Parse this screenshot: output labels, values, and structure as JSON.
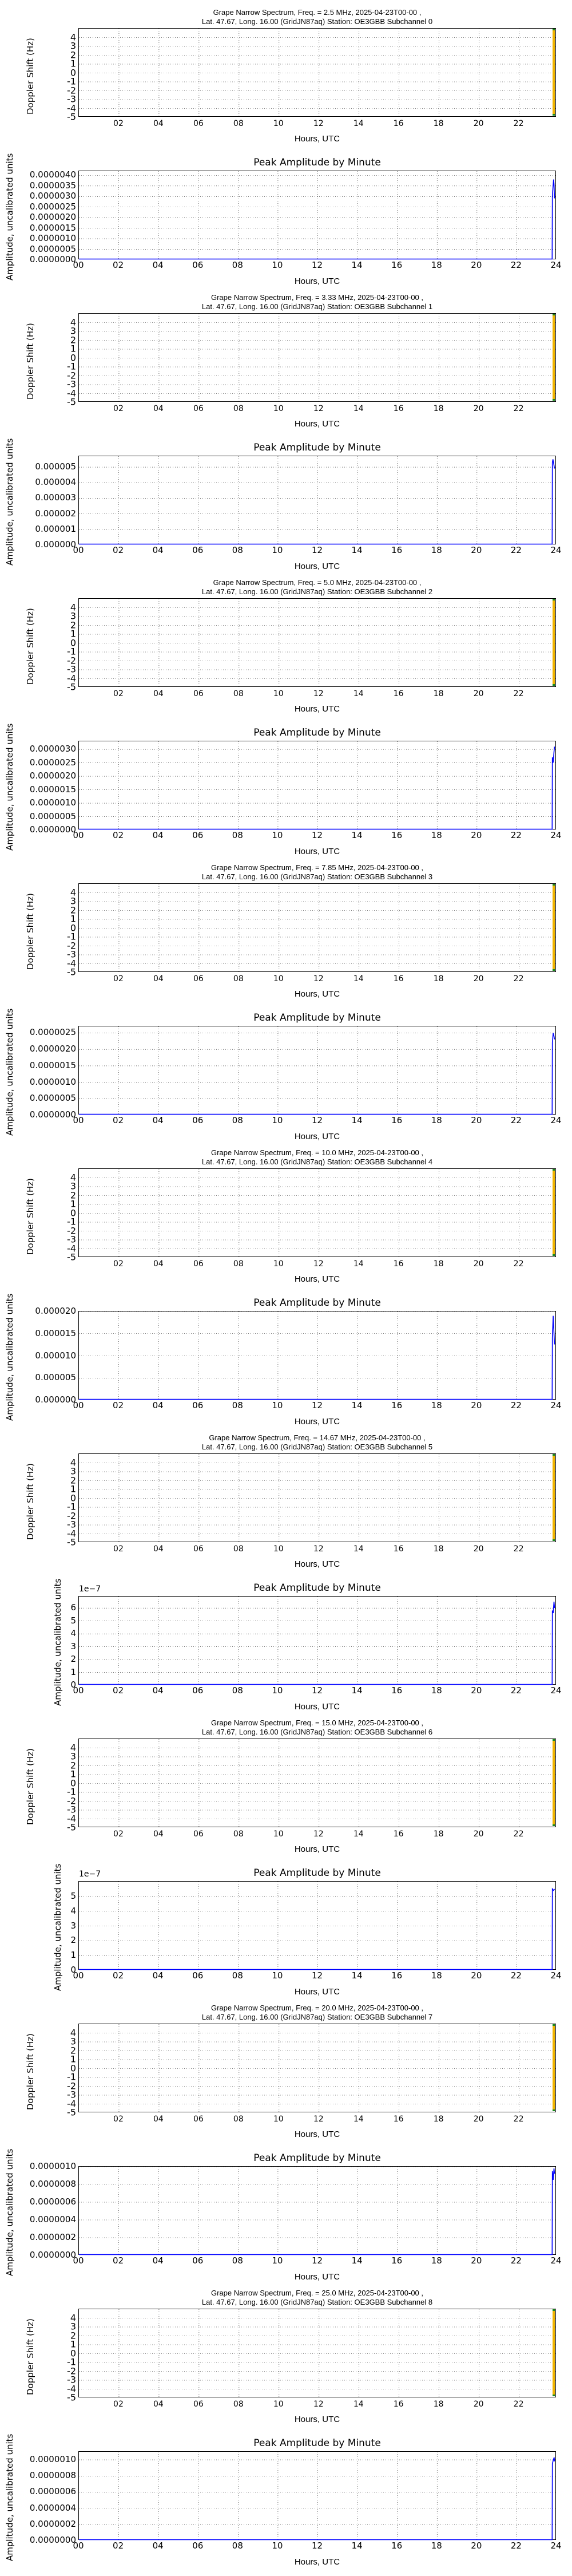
{
  "common": {
    "spectrum_ylabel": "Doppler Shift (Hz)",
    "amplitude_ylabel": "Amplitude, uncalibrated units",
    "amplitude_title": "Peak Amplitude by Minute",
    "xlabel": "Hours, UTC",
    "spectrum_xticks": [
      "02",
      "04",
      "06",
      "08",
      "10",
      "12",
      "14",
      "16",
      "18",
      "20",
      "22"
    ],
    "amplitude_xticks": [
      "00",
      "02",
      "04",
      "06",
      "08",
      "10",
      "12",
      "14",
      "16",
      "18",
      "20",
      "22",
      "24"
    ],
    "spectrum_yticks": [
      "4",
      "3",
      "2",
      "1",
      "0",
      "-1",
      "-2",
      "-3",
      "-4",
      "-5"
    ],
    "location_line": "Lat.  47.67, Long.  16.00 (GridJN87aq) Station: OE3GBB",
    "date": "2025-04-23T00-00",
    "colors": {
      "amplitude_line": "#0000ff",
      "spectrum_strip": "#f0b400",
      "spectrum_strip_edge": "#1a8a1a",
      "grid": "#000000"
    }
  },
  "sections": [
    {
      "spec_title_1": "Grape Narrow Spectrum, Freq. = 2.5 MHz, 2025-04-23T00-00 ,",
      "spec_title_2": "Lat.  47.67, Long.  16.00 (GridJN87aq) Station: OE3GBB Subchannel 0",
      "amp_offset": "",
      "amp_yticks": [
        "0.0000040",
        "0.0000035",
        "0.0000030",
        "0.0000025",
        "0.0000020",
        "0.0000015",
        "0.0000010",
        "0.0000005",
        "0.0000000"
      ]
    },
    {
      "spec_title_1": "Grape Narrow Spectrum, Freq. = 3.33 MHz, 2025-04-23T00-00 ,",
      "spec_title_2": "Lat.  47.67, Long.  16.00 (GridJN87aq) Station: OE3GBB Subchannel 1",
      "amp_offset": "",
      "amp_yticks": [
        "0.000005",
        "0.000004",
        "0.000003",
        "0.000002",
        "0.000001",
        "0.000000"
      ]
    },
    {
      "spec_title_1": "Grape Narrow Spectrum, Freq. = 5.0 MHz, 2025-04-23T00-00 ,",
      "spec_title_2": "Lat.  47.67, Long.  16.00 (GridJN87aq) Station: OE3GBB Subchannel 2",
      "amp_offset": "",
      "amp_yticks": [
        "0.0000030",
        "0.0000025",
        "0.0000020",
        "0.0000015",
        "0.0000010",
        "0.0000005",
        "0.0000000"
      ]
    },
    {
      "spec_title_1": "Grape Narrow Spectrum, Freq. = 7.85 MHz, 2025-04-23T00-00 ,",
      "spec_title_2": "Lat.  47.67, Long.  16.00 (GridJN87aq) Station: OE3GBB Subchannel 3",
      "amp_offset": "",
      "amp_yticks": [
        "0.0000025",
        "0.0000020",
        "0.0000015",
        "0.0000010",
        "0.0000005",
        "0.0000000"
      ]
    },
    {
      "spec_title_1": "Grape Narrow Spectrum, Freq. = 10.0 MHz, 2025-04-23T00-00 ,",
      "spec_title_2": "Lat.  47.67, Long.  16.00 (GridJN87aq) Station: OE3GBB Subchannel 4",
      "amp_offset": "",
      "amp_yticks": [
        "0.000020",
        "0.000015",
        "0.000010",
        "0.000005",
        "0.000000"
      ]
    },
    {
      "spec_title_1": "Grape Narrow Spectrum, Freq. = 14.67 MHz, 2025-04-23T00-00 ,",
      "spec_title_2": "Lat.  47.67, Long.  16.00 (GridJN87aq) Station: OE3GBB Subchannel 5",
      "amp_offset": "1e−7",
      "amp_yticks": [
        "6",
        "5",
        "4",
        "3",
        "2",
        "1",
        "0"
      ]
    },
    {
      "spec_title_1": "Grape Narrow Spectrum, Freq. = 15.0 MHz, 2025-04-23T00-00 ,",
      "spec_title_2": "Lat.  47.67, Long.  16.00 (GridJN87aq) Station: OE3GBB Subchannel 6",
      "amp_offset": "1e−7",
      "amp_yticks": [
        "5",
        "4",
        "3",
        "2",
        "1",
        "0"
      ]
    },
    {
      "spec_title_1": "Grape Narrow Spectrum, Freq. = 20.0 MHz, 2025-04-23T00-00 ,",
      "spec_title_2": "Lat.  47.67, Long.  16.00 (GridJN87aq) Station: OE3GBB Subchannel 7",
      "amp_offset": "",
      "amp_yticks": [
        "0.0000010",
        "0.0000008",
        "0.0000006",
        "0.0000004",
        "0.0000002",
        "0.0000000"
      ]
    },
    {
      "spec_title_1": "Grape Narrow Spectrum, Freq. = 25.0 MHz, 2025-04-23T00-00 ,",
      "spec_title_2": "Lat.  47.67, Long.  16.00 (GridJN87aq) Station: OE3GBB Subchannel 8",
      "amp_offset": "",
      "amp_yticks": [
        "0.0000010",
        "0.0000008",
        "0.0000006",
        "0.0000004",
        "0.0000002",
        "0.0000000"
      ]
    }
  ],
  "chart_data": [
    {
      "type": "heatmap",
      "title": "Grape Narrow Spectrum, Freq. = 2.5 MHz, 2025-04-23T00-00 , Lat. 47.67, Long. 16.00 (GridJN87aq) Station: OE3GBB Subchannel 0",
      "xlabel": "Hours, UTC",
      "ylabel": "Doppler Shift (Hz)",
      "xlim": [
        0,
        23.87
      ],
      "ylim": [
        -5,
        5
      ],
      "x_ticks": [
        "02",
        "04",
        "06",
        "08",
        "10",
        "12",
        "14",
        "16",
        "18",
        "20",
        "22"
      ],
      "y_ticks": [
        4,
        3,
        2,
        1,
        0,
        -1,
        -2,
        -3,
        -4,
        -5
      ],
      "grid": true,
      "data_region": {
        "x": [
          23.73,
          23.87
        ],
        "y": [
          -5,
          5
        ],
        "color": "orange/yellow"
      }
    },
    {
      "type": "line",
      "title": "Peak Amplitude by Minute",
      "subchannel": 0,
      "xlabel": "Hours, UTC",
      "ylabel": "Amplitude, uncalibrated units",
      "xlim": [
        0,
        24
      ],
      "ylim": [
        0,
        4.2e-06
      ],
      "grid": true,
      "x": [
        0,
        23.78,
        23.79,
        23.82,
        23.85,
        23.87,
        23.9
      ],
      "values": [
        0,
        0,
        3e-06,
        3.4e-06,
        3.8e-06,
        3.6e-06,
        2.9e-06
      ]
    },
    {
      "type": "heatmap",
      "title": "Grape Narrow Spectrum, Freq. = 3.33 MHz, 2025-04-23T00-00 , Lat. 47.67, Long. 16.00 (GridJN87aq) Station: OE3GBB Subchannel 1",
      "xlabel": "Hours, UTC",
      "ylabel": "Doppler Shift (Hz)",
      "xlim": [
        0,
        23.87
      ],
      "ylim": [
        -5,
        5
      ],
      "grid": true
    },
    {
      "type": "line",
      "title": "Peak Amplitude by Minute",
      "subchannel": 1,
      "xlabel": "Hours, UTC",
      "ylabel": "Amplitude, uncalibrated units",
      "xlim": [
        0,
        24
      ],
      "ylim": [
        0,
        5.7e-06
      ],
      "grid": true,
      "x": [
        0,
        23.78,
        23.79,
        23.82,
        23.86,
        23.9
      ],
      "values": [
        0,
        0,
        5.3e-06,
        5.5e-06,
        5.2e-06,
        4.9e-06
      ]
    },
    {
      "type": "heatmap",
      "title": "Grape Narrow Spectrum, Freq. = 5.0 MHz, 2025-04-23T00-00 , Lat. 47.67, Long. 16.00 (GridJN87aq) Station: OE3GBB Subchannel 2",
      "xlabel": "Hours, UTC",
      "ylabel": "Doppler Shift (Hz)",
      "xlim": [
        0,
        23.87
      ],
      "ylim": [
        -5,
        5
      ],
      "grid": true
    },
    {
      "type": "line",
      "title": "Peak Amplitude by Minute",
      "subchannel": 2,
      "xlabel": "Hours, UTC",
      "ylabel": "Amplitude, uncalibrated units",
      "xlim": [
        0,
        24
      ],
      "ylim": [
        0,
        3.3e-06
      ],
      "grid": true,
      "x": [
        0,
        23.78,
        23.79,
        23.83,
        23.87,
        23.9
      ],
      "values": [
        0,
        0,
        2.7e-06,
        2.5e-06,
        2.9e-06,
        3.1e-06
      ]
    },
    {
      "type": "heatmap",
      "title": "Grape Narrow Spectrum, Freq. = 7.85 MHz, 2025-04-23T00-00 , Lat. 47.67, Long. 16.00 (GridJN87aq) Station: OE3GBB Subchannel 3",
      "xlabel": "Hours, UTC",
      "ylabel": "Doppler Shift (Hz)",
      "xlim": [
        0,
        23.87
      ],
      "ylim": [
        -5,
        5
      ],
      "grid": true
    },
    {
      "type": "line",
      "title": "Peak Amplitude by Minute",
      "subchannel": 3,
      "xlabel": "Hours, UTC",
      "ylabel": "Amplitude, uncalibrated units",
      "xlim": [
        0,
        24
      ],
      "ylim": [
        0,
        2.7e-06
      ],
      "grid": true,
      "x": [
        0,
        23.78,
        23.79,
        23.83,
        23.87,
        23.9
      ],
      "values": [
        0,
        0,
        2.2e-06,
        2.5e-06,
        2.4e-06,
        2.3e-06
      ]
    },
    {
      "type": "heatmap",
      "title": "Grape Narrow Spectrum, Freq. = 10.0 MHz, 2025-04-23T00-00 , Lat. 47.67, Long. 16.00 (GridJN87aq) Station: OE3GBB Subchannel 4",
      "xlabel": "Hours, UTC",
      "ylabel": "Doppler Shift (Hz)",
      "xlim": [
        0,
        23.87
      ],
      "ylim": [
        -5,
        5
      ],
      "grid": true
    },
    {
      "type": "line",
      "title": "Peak Amplitude by Minute",
      "subchannel": 4,
      "xlabel": "Hours, UTC",
      "ylabel": "Amplitude, uncalibrated units",
      "xlim": [
        0,
        24
      ],
      "ylim": [
        0,
        2e-05
      ],
      "grid": true,
      "x": [
        0,
        23.78,
        23.79,
        23.83,
        23.86,
        23.9
      ],
      "values": [
        0,
        0,
        1.4e-05,
        1.9e-05,
        1.6e-05,
        1.25e-05
      ]
    },
    {
      "type": "heatmap",
      "title": "Grape Narrow Spectrum, Freq. = 14.67 MHz, 2025-04-23T00-00 , Lat. 47.67, Long. 16.00 (GridJN87aq) Station: OE3GBB Subchannel 5",
      "xlabel": "Hours, UTC",
      "ylabel": "Doppler Shift (Hz)",
      "xlim": [
        0,
        23.87
      ],
      "ylim": [
        -5,
        5
      ],
      "grid": true
    },
    {
      "type": "line",
      "title": "Peak Amplitude by Minute",
      "subchannel": 5,
      "xlabel": "Hours, UTC",
      "ylabel": "Amplitude, uncalibrated units",
      "y_offset_label": "1e-7",
      "xlim": [
        0,
        24
      ],
      "ylim": [
        0,
        6.9e-07
      ],
      "grid": true,
      "x": [
        0,
        23.78,
        23.79,
        23.83,
        23.87,
        23.9
      ],
      "values": [
        0,
        0,
        5.8e-07,
        5.6e-07,
        6.5e-07,
        6e-07
      ]
    },
    {
      "type": "heatmap",
      "title": "Grape Narrow Spectrum, Freq. = 15.0 MHz, 2025-04-23T00-00 , Lat. 47.67, Long. 16.00 (GridJN87aq) Station: OE3GBB Subchannel 6",
      "xlabel": "Hours, UTC",
      "ylabel": "Doppler Shift (Hz)",
      "xlim": [
        0,
        23.87
      ],
      "ylim": [
        -5,
        5
      ],
      "grid": true
    },
    {
      "type": "line",
      "title": "Peak Amplitude by Minute",
      "subchannel": 6,
      "xlabel": "Hours, UTC",
      "ylabel": "Amplitude, uncalibrated units",
      "y_offset_label": "1e-7",
      "xlim": [
        0,
        24
      ],
      "ylim": [
        0,
        6e-07
      ],
      "grid": true,
      "x": [
        0,
        23.78,
        23.79,
        23.85,
        23.9
      ],
      "values": [
        0,
        0,
        5.5e-07,
        5.4e-07,
        5.5e-07
      ]
    },
    {
      "type": "heatmap",
      "title": "Grape Narrow Spectrum, Freq. = 20.0 MHz, 2025-04-23T00-00 , Lat. 47.67, Long. 16.00 (GridJN87aq) Station: OE3GBB Subchannel 7",
      "xlabel": "Hours, UTC",
      "ylabel": "Doppler Shift (Hz)",
      "xlim": [
        0,
        23.87
      ],
      "ylim": [
        -5,
        5
      ],
      "grid": true
    },
    {
      "type": "line",
      "title": "Peak Amplitude by Minute",
      "subchannel": 7,
      "xlabel": "Hours, UTC",
      "ylabel": "Amplitude, uncalibrated units",
      "xlim": [
        0,
        24
      ],
      "ylim": [
        0,
        1e-06
      ],
      "grid": true,
      "x": [
        0,
        23.78,
        23.79,
        23.83,
        23.87,
        23.9
      ],
      "values": [
        0,
        0,
        9.5e-07,
        8.5e-07,
        9.8e-07,
        9.2e-07
      ]
    },
    {
      "type": "heatmap",
      "title": "Grape Narrow Spectrum, Freq. = 25.0 MHz, 2025-04-23T00-00 , Lat. 47.67, Long. 16.00 (GridJN87aq) Station: OE3GBB Subchannel 8",
      "xlabel": "Hours, UTC",
      "ylabel": "Doppler Shift (Hz)",
      "xlim": [
        0,
        23.87
      ],
      "ylim": [
        -5,
        5
      ],
      "grid": true
    },
    {
      "type": "line",
      "title": "Peak Amplitude by Minute",
      "subchannel": 8,
      "xlabel": "Hours, UTC",
      "ylabel": "Amplitude, uncalibrated units",
      "xlim": [
        0,
        24
      ],
      "ylim": [
        0,
        1.1e-06
      ],
      "grid": true,
      "x": [
        0,
        23.78,
        23.79,
        23.84,
        23.88,
        23.9
      ],
      "values": [
        0,
        0,
        9.5e-07,
        1e-06,
        1.03e-06,
        9.8e-07
      ]
    }
  ]
}
